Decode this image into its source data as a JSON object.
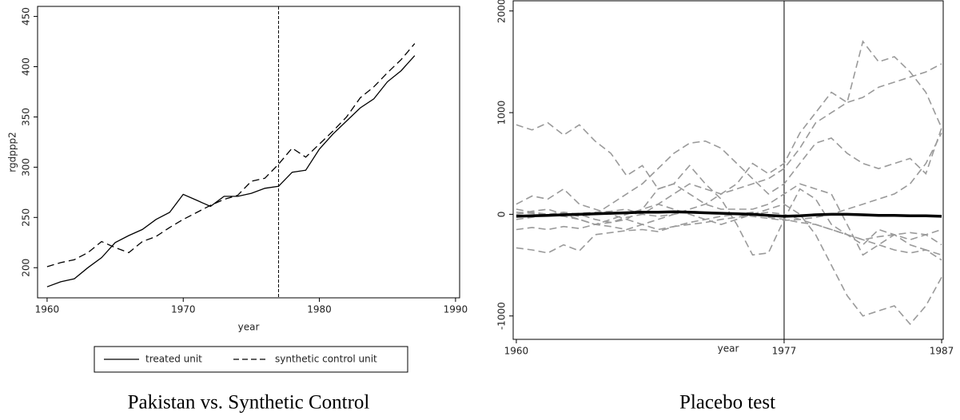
{
  "chart_data": [
    {
      "type": "line",
      "caption": "Pakistan vs. Synthetic Control",
      "xlabel": "year",
      "ylabel": "rgdppp2",
      "x": [
        1960,
        1961,
        1962,
        1963,
        1964,
        1965,
        1966,
        1967,
        1968,
        1969,
        1970,
        1971,
        1972,
        1973,
        1974,
        1975,
        1976,
        1977,
        1978,
        1979,
        1980,
        1981,
        1982,
        1983,
        1984,
        1985,
        1986,
        1987
      ],
      "xlim": [
        1959.3,
        1990.3
      ],
      "xticks": [
        1960,
        1970,
        1980,
        1990
      ],
      "ylim": [
        170,
        460
      ],
      "yticks": [
        200,
        250,
        300,
        350,
        400,
        450
      ],
      "vline": 1977,
      "vline_dashed": true,
      "legend": "bottom",
      "series": [
        {
          "name": "treated unit",
          "color": "#000000",
          "dashed": false,
          "width": 1.3,
          "values": [
            181,
            186,
            189,
            200,
            210,
            225,
            232,
            238,
            248,
            255,
            273,
            267,
            261,
            271,
            271,
            274,
            279,
            281,
            295,
            297,
            318,
            333,
            346,
            359,
            368,
            385,
            396,
            411
          ]
        },
        {
          "name": "synthetic control unit",
          "color": "#000000",
          "dashed": true,
          "width": 1.3,
          "values": [
            201,
            205,
            208,
            215,
            226,
            220,
            215,
            226,
            231,
            240,
            248,
            255,
            262,
            268,
            272,
            286,
            289,
            303,
            319,
            310,
            323,
            336,
            350,
            369,
            380,
            394,
            407,
            423
          ]
        }
      ]
    },
    {
      "type": "line",
      "caption": "Placebo test",
      "xlabel": "year",
      "x": [
        1960,
        1961,
        1962,
        1963,
        1964,
        1965,
        1966,
        1967,
        1968,
        1969,
        1970,
        1971,
        1972,
        1973,
        1974,
        1975,
        1976,
        1977,
        1978,
        1979,
        1980,
        1981,
        1982,
        1983,
        1984,
        1985,
        1986,
        1987
      ],
      "xlim": [
        1959.8,
        1987.1
      ],
      "xticks": [
        1960,
        1977,
        1987
      ],
      "ylim": [
        -1230,
        2100
      ],
      "yticks": [
        -1000,
        0,
        1000,
        2000
      ],
      "vline": 1977,
      "vline_dashed": false,
      "series": [
        {
          "color": "#9a9a9a",
          "dashed": true,
          "width": 1.6,
          "values": [
            880,
            830,
            900,
            780,
            880,
            720,
            600,
            380,
            480,
            250,
            300,
            480,
            300,
            150,
            -100,
            -400,
            -380,
            -50,
            250,
            150,
            -100,
            -200,
            -300,
            -150,
            -200,
            -300,
            -350,
            -450
          ]
        },
        {
          "color": "#9a9a9a",
          "dashed": true,
          "width": 1.6,
          "values": [
            50,
            20,
            0,
            -20,
            -50,
            -100,
            -120,
            -150,
            -100,
            -50,
            0,
            50,
            100,
            200,
            300,
            500,
            400,
            500,
            800,
            1000,
            1200,
            1100,
            1700,
            1500,
            1550,
            1400,
            1200,
            850
          ]
        },
        {
          "color": "#9a9a9a",
          "dashed": true,
          "width": 1.6,
          "values": [
            -50,
            -30,
            0,
            20,
            0,
            -50,
            -80,
            -30,
            0,
            100,
            200,
            300,
            250,
            200,
            250,
            300,
            350,
            450,
            650,
            900,
            1000,
            1100,
            1150,
            1250,
            1300,
            1350,
            1400,
            1480
          ]
        },
        {
          "color": "#9a9a9a",
          "dashed": true,
          "width": 1.6,
          "values": [
            0,
            30,
            50,
            0,
            -50,
            -100,
            -50,
            0,
            50,
            100,
            50,
            0,
            -50,
            -100,
            -50,
            0,
            50,
            100,
            0,
            -200,
            -500,
            -800,
            -1000,
            -950,
            -900,
            -1080,
            -900,
            -620
          ]
        },
        {
          "color": "#9a9a9a",
          "dashed": true,
          "width": 1.6,
          "values": [
            -330,
            -350,
            -380,
            -300,
            -360,
            -200,
            -180,
            -160,
            -150,
            -170,
            -120,
            -100,
            -80,
            -50,
            -30,
            0,
            20,
            0,
            -50,
            -100,
            -150,
            -200,
            -250,
            -300,
            -350,
            -380,
            -350,
            -400
          ]
        },
        {
          "color": "#9a9a9a",
          "dashed": true,
          "width": 1.6,
          "values": [
            100,
            180,
            150,
            250,
            100,
            50,
            0,
            -50,
            50,
            250,
            300,
            200,
            100,
            50,
            50,
            50,
            100,
            200,
            300,
            250,
            200,
            -100,
            -400,
            -300,
            -200,
            -250,
            -200,
            -300
          ]
        },
        {
          "color": "#9a9a9a",
          "dashed": true,
          "width": 1.6,
          "values": [
            0,
            20,
            0,
            10,
            -20,
            0,
            100,
            200,
            300,
            450,
            600,
            700,
            720,
            650,
            500,
            350,
            200,
            300,
            500,
            700,
            750,
            600,
            500,
            450,
            500,
            550,
            400,
            850
          ]
        },
        {
          "color": "#9a9a9a",
          "dashed": true,
          "width": 1.6,
          "values": [
            -150,
            -130,
            -150,
            -120,
            -140,
            -100,
            -80,
            -50,
            -100,
            -150,
            -120,
            -80,
            -50,
            -20,
            0,
            20,
            -30,
            -50,
            -80,
            -100,
            -150,
            -200,
            -250,
            -220,
            -200,
            -180,
            -200,
            -150
          ]
        },
        {
          "color": "#9a9a9a",
          "dashed": true,
          "width": 1.6,
          "values": [
            20,
            10,
            -10,
            0,
            10,
            20,
            30,
            50,
            0,
            -20,
            0,
            30,
            20,
            10,
            0,
            -20,
            -40,
            -60,
            -50,
            -30,
            0,
            50,
            100,
            150,
            200,
            300,
            500,
            800
          ]
        },
        {
          "color": "#000000",
          "dashed": false,
          "width": 3.5,
          "values": [
            -20,
            -15,
            -10,
            -5,
            0,
            5,
            10,
            15,
            20,
            20,
            25,
            20,
            15,
            10,
            5,
            0,
            -10,
            -20,
            -15,
            -5,
            0,
            0,
            -5,
            -10,
            -10,
            -15,
            -15,
            -20
          ]
        }
      ]
    }
  ]
}
